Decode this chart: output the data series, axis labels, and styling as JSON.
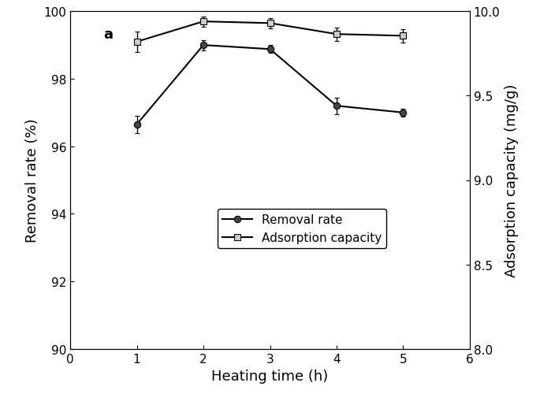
{
  "x": [
    1,
    2,
    3,
    4,
    5
  ],
  "removal_rate": [
    96.65,
    99.0,
    98.88,
    97.2,
    97.0
  ],
  "removal_rate_err": [
    0.25,
    0.15,
    0.12,
    0.25,
    0.12
  ],
  "adsorption_capacity": [
    9.82,
    9.94,
    9.93,
    9.865,
    9.855
  ],
  "adsorption_capacity_err": [
    0.06,
    0.03,
    0.03,
    0.04,
    0.04
  ],
  "xlabel": "Heating time (h)",
  "ylabel_left": "Removal rate (%)",
  "ylabel_right": "Adsorption capacity (mg/g)",
  "xlim": [
    0,
    6
  ],
  "ylim_left": [
    90,
    100
  ],
  "ylim_right": [
    8.0,
    10.0
  ],
  "yticks_left": [
    90,
    92,
    94,
    96,
    98,
    100
  ],
  "yticks_right": [
    8.0,
    8.5,
    9.0,
    9.5,
    10.0
  ],
  "xticks": [
    0,
    1,
    2,
    3,
    4,
    5,
    6
  ],
  "legend_removal": "Removal rate",
  "legend_adsorption": "Adsorption capacity",
  "label_a": "a",
  "line_color": "#000000",
  "background_color": "#ffffff"
}
